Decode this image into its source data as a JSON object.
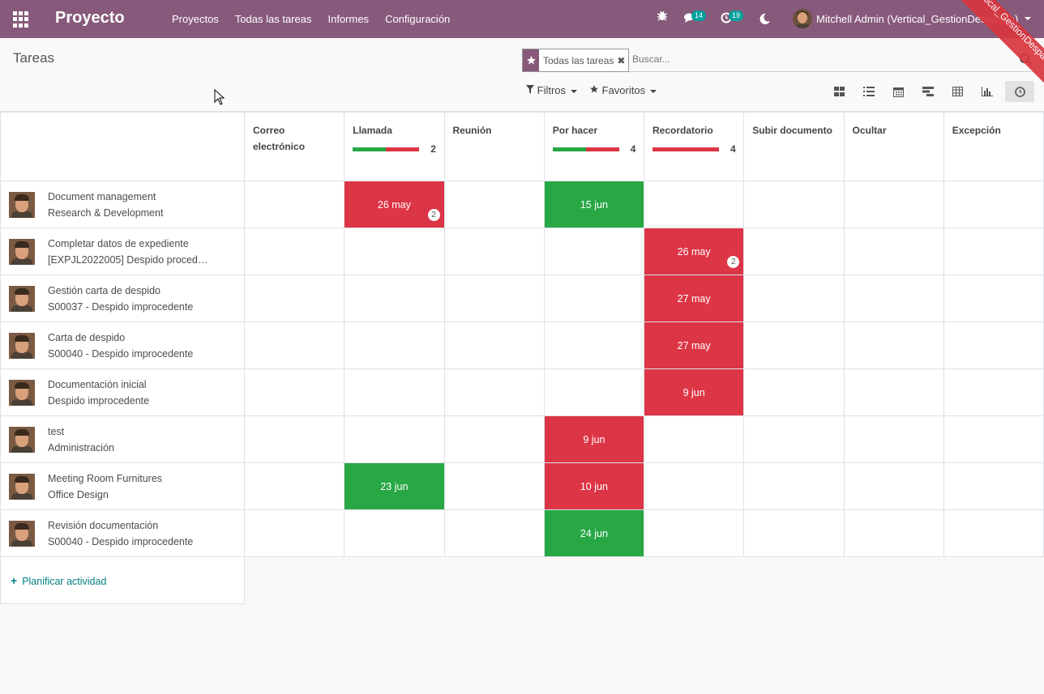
{
  "navbar": {
    "brand": "Proyecto",
    "menu": [
      "Proyectos",
      "Todas las tareas",
      "Informes",
      "Configuración"
    ],
    "messages_count": "14",
    "activities_count": "19",
    "user_name": "Mitchell Admin (Vertical_GestionDespacho)",
    "ribbon": "Vertical_GestionDespacho Demo",
    "color": "#875a7b"
  },
  "control": {
    "breadcrumb": "Tareas",
    "facet_label": "Todas las tareas",
    "search_placeholder": "Buscar...",
    "filters_label": "Filtros",
    "favorites_label": "Favoritos",
    "views": [
      "kanban-icon",
      "list-icon",
      "calendar-icon",
      "gantt-icon",
      "pivot-icon",
      "graph-icon",
      "activity-icon"
    ]
  },
  "columns": [
    {
      "title": "Correo electrónico",
      "progress": null,
      "count": ""
    },
    {
      "title": "Llamada",
      "progress": {
        "green": 1,
        "red": 1
      },
      "count": "2"
    },
    {
      "title": "Reunión",
      "progress": null,
      "count": ""
    },
    {
      "title": "Por hacer",
      "progress": {
        "green": 2,
        "red": 2
      },
      "count": "4"
    },
    {
      "title": "Recordatorio",
      "progress": {
        "green": 0,
        "red": 4
      },
      "count": "4"
    },
    {
      "title": "Subir documento",
      "progress": null,
      "count": ""
    },
    {
      "title": "Ocultar",
      "progress": null,
      "count": ""
    },
    {
      "title": "Excepción",
      "progress": null,
      "count": ""
    }
  ],
  "rows": [
    {
      "name": "Document management",
      "sub": "Research & Development",
      "cells": {
        "1": {
          "date": "26 may",
          "state": "red",
          "count": "2"
        },
        "3": {
          "date": "15 jun",
          "state": "green"
        }
      }
    },
    {
      "name": "Completar datos de expediente",
      "sub": "[EXPJL2022005] Despido proced…",
      "cells": {
        "4": {
          "date": "26 may",
          "state": "red",
          "count": "2"
        }
      }
    },
    {
      "name": "Gestión carta de despido",
      "sub": "S00037 - Despido improcedente",
      "cells": {
        "4": {
          "date": "27 may",
          "state": "red"
        }
      }
    },
    {
      "name": "Carta de despido",
      "sub": "S00040 - Despido improcedente",
      "cells": {
        "4": {
          "date": "27 may",
          "state": "red"
        }
      }
    },
    {
      "name": "Documentación inicial",
      "sub": "Despido improcedente",
      "cells": {
        "4": {
          "date": "9 jun",
          "state": "red"
        }
      }
    },
    {
      "name": "test",
      "sub": "Administración",
      "cells": {
        "3": {
          "date": "9 jun",
          "state": "red"
        }
      }
    },
    {
      "name": "Meeting Room Furnitures",
      "sub": "Office Design",
      "cells": {
        "1": {
          "date": "23 jun",
          "state": "green"
        },
        "3": {
          "date": "10 jun",
          "state": "red"
        }
      }
    },
    {
      "name": "Revisión documentación",
      "sub": "S00040 - Despido improcedente",
      "cells": {
        "3": {
          "date": "24 jun",
          "state": "green"
        }
      }
    }
  ],
  "add_activity_label": "Planificar actividad"
}
